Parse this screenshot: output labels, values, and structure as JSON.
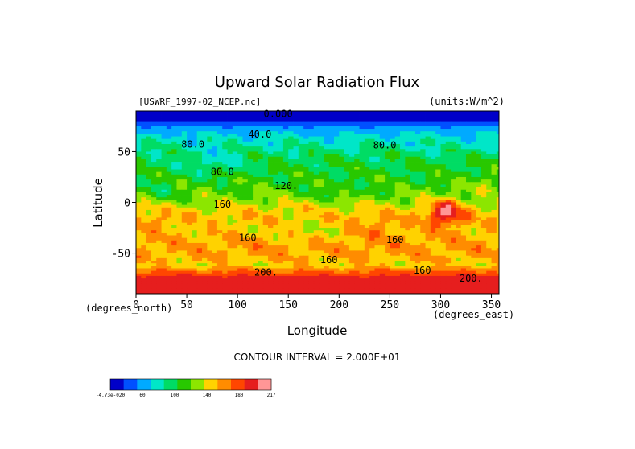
{
  "chart_data": {
    "type": "heatmap",
    "title": "Upward Solar Radiation Flux",
    "file_label": "[USWRF_1997-02_NCEP.nc]",
    "units_label": "(units:W/m^2)",
    "xlabel": "Longitude",
    "ylabel": "Latitude",
    "x_unit_label": "(degrees_east)",
    "y_unit_label": "(degrees_north)",
    "xlim": [
      0,
      357.5
    ],
    "ylim": [
      -90,
      90
    ],
    "x_ticks": [
      0,
      50,
      100,
      150,
      200,
      250,
      300,
      350
    ],
    "y_ticks": [
      -50,
      0,
      50
    ],
    "contour_interval_text": "CONTOUR INTERVAL = 2.000E+01",
    "contour_labels": [
      {
        "text": "0.000",
        "lon": 140,
        "lat": 84
      },
      {
        "text": "40.0",
        "lon": 122,
        "lat": 64
      },
      {
        "text": "80.0",
        "lon": 56,
        "lat": 54
      },
      {
        "text": "80.0",
        "lon": 245,
        "lat": 53
      },
      {
        "text": "80.0",
        "lon": 85,
        "lat": 27
      },
      {
        "text": "120.",
        "lon": 148,
        "lat": 13
      },
      {
        "text": "160",
        "lon": 85,
        "lat": -5
      },
      {
        "text": "160",
        "lon": 110,
        "lat": -38
      },
      {
        "text": "160",
        "lon": 255,
        "lat": -40
      },
      {
        "text": "160",
        "lon": 190,
        "lat": -60
      },
      {
        "text": "160",
        "lon": 282,
        "lat": -70
      },
      {
        "text": "200.",
        "lon": 128,
        "lat": -72
      },
      {
        "text": "200.",
        "lon": 330,
        "lat": -78
      }
    ],
    "colorbar": {
      "boundaries": [
        0,
        20,
        40,
        60,
        80,
        100,
        120,
        140,
        160,
        180,
        200,
        217
      ],
      "colors": [
        "#0000c8",
        "#0050ff",
        "#00aaff",
        "#00e6c8",
        "#00dc64",
        "#28c800",
        "#8ce600",
        "#ffd200",
        "#ff8c00",
        "#ff4600",
        "#e61e1e",
        "#ff9696"
      ],
      "labels": [
        "-4.73e-020",
        "60",
        "100",
        "140",
        "180",
        "217"
      ]
    },
    "zonal_profile": [
      {
        "lat": 90,
        "value": 0
      },
      {
        "lat": 84,
        "value": 10
      },
      {
        "lat": 78,
        "value": 30
      },
      {
        "lat": 70,
        "value": 55
      },
      {
        "lat": 62,
        "value": 70
      },
      {
        "lat": 54,
        "value": 80
      },
      {
        "lat": 45,
        "value": 95
      },
      {
        "lat": 35,
        "value": 100
      },
      {
        "lat": 25,
        "value": 105
      },
      {
        "lat": 15,
        "value": 115
      },
      {
        "lat": 5,
        "value": 125
      },
      {
        "lat": -5,
        "value": 145
      },
      {
        "lat": -15,
        "value": 155
      },
      {
        "lat": -25,
        "value": 150
      },
      {
        "lat": -35,
        "value": 160
      },
      {
        "lat": -45,
        "value": 165
      },
      {
        "lat": -55,
        "value": 160
      },
      {
        "lat": -62,
        "value": 150
      },
      {
        "lat": -66,
        "value": 170
      },
      {
        "lat": -70,
        "value": 190
      },
      {
        "lat": -75,
        "value": 210
      },
      {
        "lat": -90,
        "value": 215
      }
    ],
    "anomalies": [
      {
        "lon": 305,
        "lat": -10,
        "dlon": 18,
        "dlat": 14,
        "delta": 70
      },
      {
        "lon": 75,
        "lat": 40,
        "dlon": 30,
        "dlat": 12,
        "delta": -25
      },
      {
        "lon": 25,
        "lat": 10,
        "dlon": 20,
        "dlat": 10,
        "delta": -20
      },
      {
        "lon": 200,
        "lat": 10,
        "dlon": 30,
        "dlat": 8,
        "delta": -15
      },
      {
        "lon": 240,
        "lat": -25,
        "dlon": 25,
        "dlat": 10,
        "delta": 18
      },
      {
        "lon": 20,
        "lat": -20,
        "dlon": 20,
        "dlat": 10,
        "delta": 15
      },
      {
        "lon": 165,
        "lat": -30,
        "dlon": 25,
        "dlat": 10,
        "delta": -15
      },
      {
        "lon": 345,
        "lat": 20,
        "dlon": 15,
        "dlat": 12,
        "delta": 20
      }
    ]
  }
}
